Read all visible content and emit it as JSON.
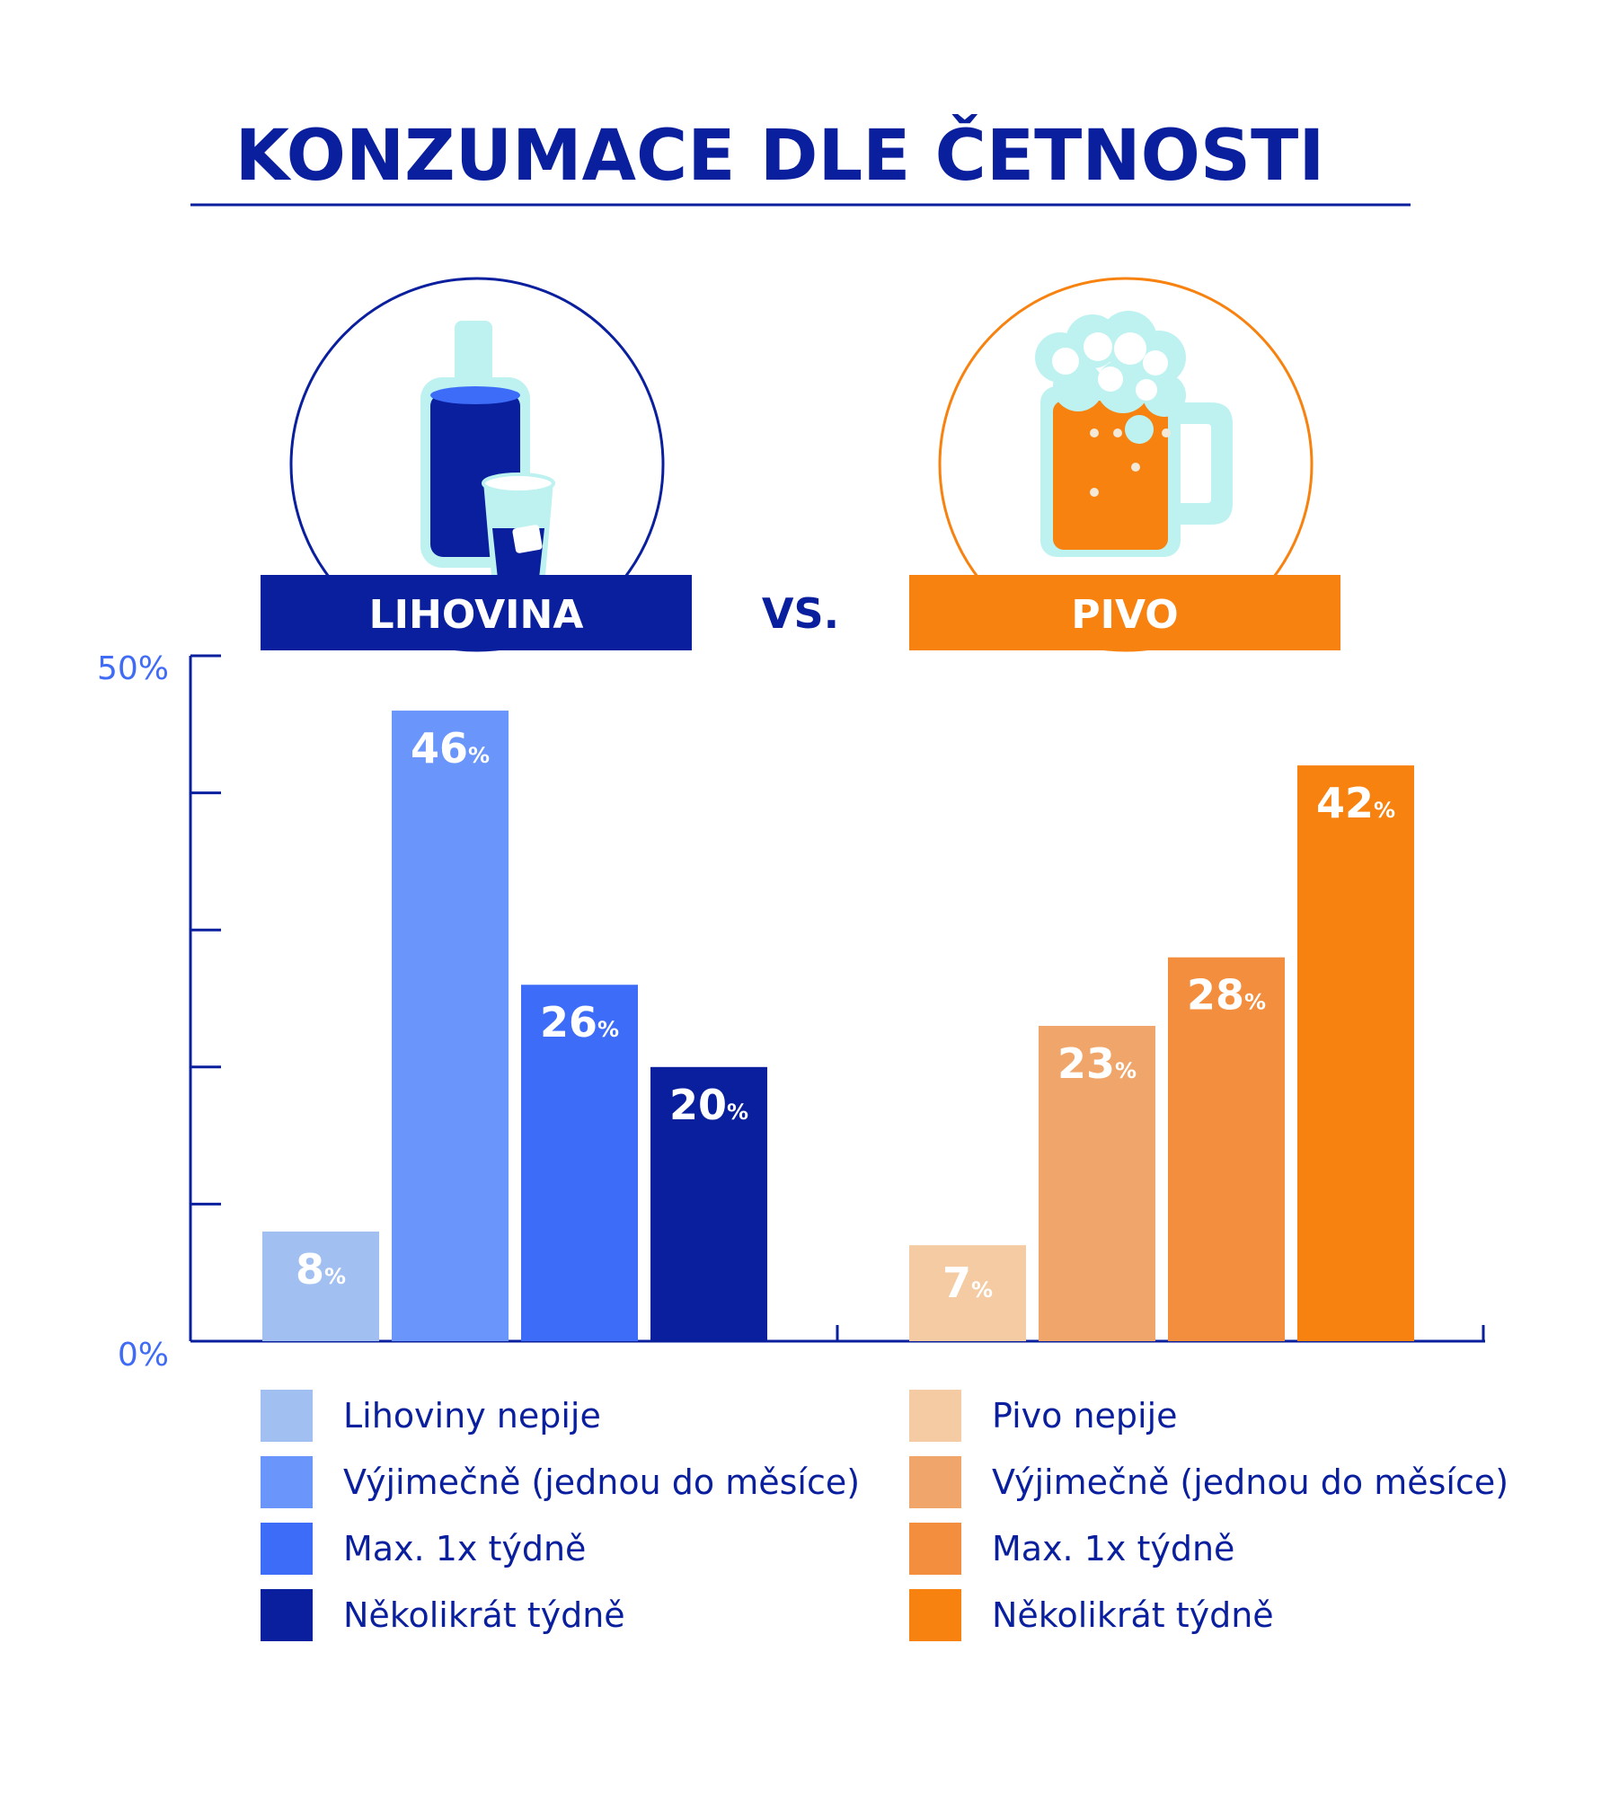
{
  "title": "KONZUMACE DLE ČETNOSTI",
  "vs_label": "VS.",
  "banners": {
    "left": "LIHOVINA",
    "right": "PIVO"
  },
  "colors": {
    "navy": "#0A1F9E",
    "orange": "#F7820F",
    "ice": "#BDF2F0"
  },
  "icons": {
    "left": "liquor-bottle-and-glass-icon",
    "right": "beer-mug-icon"
  },
  "chart_data": {
    "type": "bar",
    "ylim": [
      0,
      50
    ],
    "yticks": [
      0,
      10,
      20,
      30,
      40,
      50
    ],
    "ytick_labels": [
      "0%",
      "50%"
    ],
    "value_suffix": "%",
    "groups": [
      {
        "name": "LIHOVINA",
        "categories": [
          "Lihoviny nepije",
          "Výjimečně (jednou do měsíce)",
          "Max. 1x týdně",
          "Několikrát týdně"
        ],
        "values": [
          8,
          46,
          26,
          20
        ],
        "colors": [
          "#A2BFF2",
          "#6A96FC",
          "#3D6DF8",
          "#0A1F9E"
        ]
      },
      {
        "name": "PIVO",
        "categories": [
          "Pivo nepije",
          "Výjimečně (jednou do měsíce)",
          "Max. 1x týdně",
          "Několikrát týdně"
        ],
        "values": [
          7,
          23,
          28,
          42
        ],
        "colors": [
          "#F4CBA2",
          "#F0A56A",
          "#F38E3E",
          "#F7820F"
        ]
      }
    ],
    "legend_position": "bottom"
  }
}
